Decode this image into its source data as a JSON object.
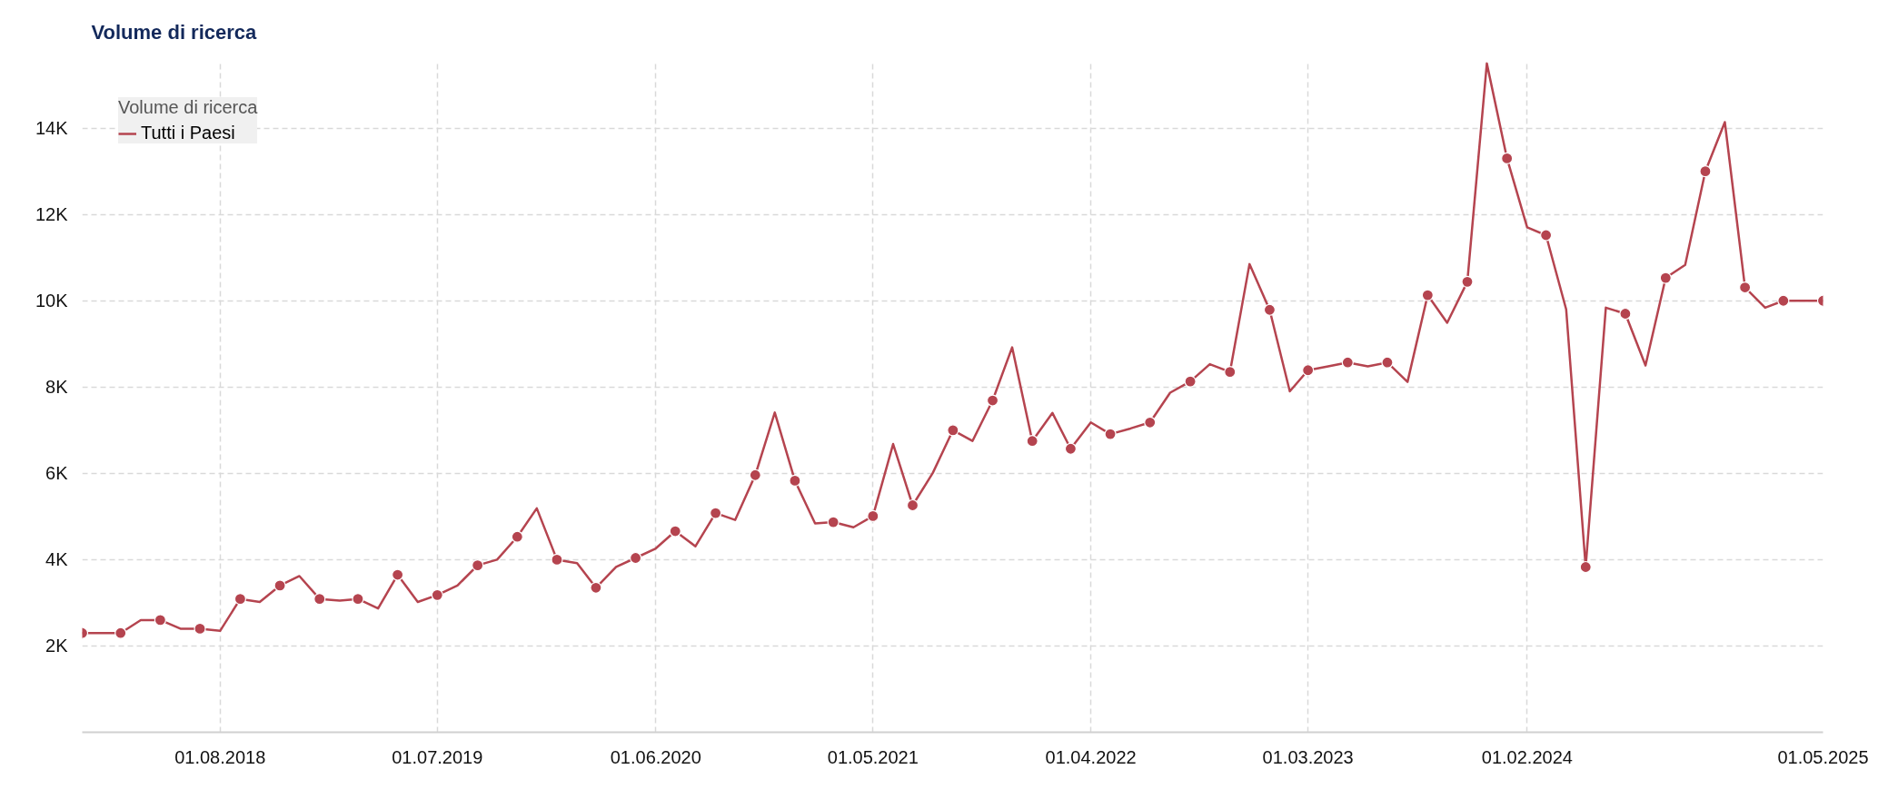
{
  "chart_data": {
    "type": "line",
    "title": "Volume di ricerca",
    "legend_title": "Volume di ricerca",
    "legend": "top left",
    "grid": true,
    "x": [
      "2018-01",
      "2018-02",
      "2018-03",
      "2018-04",
      "2018-05",
      "2018-06",
      "2018-07",
      "2018-08",
      "2018-09",
      "2018-10",
      "2018-11",
      "2018-12",
      "2019-01",
      "2019-02",
      "2019-03",
      "2019-04",
      "2019-05",
      "2019-06",
      "2019-07",
      "2019-08",
      "2019-09",
      "2019-10",
      "2019-11",
      "2019-12",
      "2020-01",
      "2020-02",
      "2020-03",
      "2020-04",
      "2020-05",
      "2020-06",
      "2020-07",
      "2020-08",
      "2020-09",
      "2020-10",
      "2020-11",
      "2020-12",
      "2021-01",
      "2021-02",
      "2021-03",
      "2021-04",
      "2021-05",
      "2021-06",
      "2021-07",
      "2021-08",
      "2021-09",
      "2021-10",
      "2021-11",
      "2021-12",
      "2022-01",
      "2022-02",
      "2022-03",
      "2022-04",
      "2022-05",
      "2022-06",
      "2022-07",
      "2022-08",
      "2022-09",
      "2022-10",
      "2022-11",
      "2022-12",
      "2023-01",
      "2023-02",
      "2023-03",
      "2023-04",
      "2023-05",
      "2023-06",
      "2023-07",
      "2023-08",
      "2023-09",
      "2023-10",
      "2023-11",
      "2023-12",
      "2024-01",
      "2024-02",
      "2024-03",
      "2024-04",
      "2024-05",
      "2024-06",
      "2024-07",
      "2024-08",
      "2024-09",
      "2024-10",
      "2024-11",
      "2024-12",
      "2025-01",
      "2025-02",
      "2025-03",
      "2025-04",
      "2025-05"
    ],
    "series": [
      {
        "name": "Tutti i Paesi",
        "color": "#b5444f",
        "values": [
          2300,
          2300,
          2300,
          2600,
          2600,
          2400,
          2400,
          2350,
          3090,
          3020,
          3400,
          3620,
          3090,
          3050,
          3090,
          2870,
          3650,
          3020,
          3180,
          3400,
          3870,
          4000,
          4530,
          5190,
          4000,
          3920,
          3350,
          3830,
          4040,
          4260,
          4660,
          4310,
          5080,
          4920,
          5960,
          7410,
          5830,
          4840,
          4870,
          4750,
          5010,
          6680,
          5260,
          6010,
          7000,
          6750,
          7690,
          8920,
          6750,
          7400,
          6570,
          7180,
          6910,
          7040,
          7180,
          7870,
          8130,
          8530,
          8350,
          10850,
          9790,
          7900,
          8390,
          8480,
          8570,
          8480,
          8570,
          8120,
          10130,
          9490,
          10440,
          15500,
          13300,
          11700,
          11520,
          9800,
          3830,
          9840,
          9700,
          8500,
          10530,
          10830,
          13000,
          14140,
          10310,
          9840,
          10000,
          10000,
          10000
        ]
      },
      {
        "type": "scatter",
        "color": "#b5444f",
        "marker": "circle",
        "x": [
          "2018-01",
          "2018-03",
          "2018-05",
          "2018-07",
          "2018-09",
          "2018-11",
          "2019-01",
          "2019-03",
          "2019-05",
          "2019-07",
          "2019-09",
          "2019-11",
          "2020-01",
          "2020-03",
          "2020-05",
          "2020-07",
          "2020-09",
          "2020-11",
          "2021-01",
          "2021-03",
          "2021-05",
          "2021-07",
          "2021-09",
          "2021-11",
          "2022-01",
          "2022-03",
          "2022-05",
          "2022-07",
          "2022-09",
          "2022-11",
          "2023-01",
          "2023-03",
          "2023-05",
          "2023-07",
          "2023-09",
          "2023-11",
          "2024-01",
          "2024-03",
          "2024-05",
          "2024-07",
          "2024-09",
          "2024-11",
          "2025-01",
          "2025-03",
          "2025-05"
        ],
        "values": [
          2300,
          2300,
          2600,
          2400,
          3090,
          3400,
          3090,
          3090,
          3650,
          3180,
          3870,
          4530,
          4000,
          3350,
          4040,
          4660,
          5080,
          5960,
          5830,
          4870,
          5010,
          5260,
          7000,
          7690,
          6750,
          6570,
          6910,
          7180,
          8130,
          8350,
          9790,
          8390,
          8570,
          8570,
          10130,
          10440,
          13300,
          11520,
          3830,
          9700,
          10530,
          13000,
          10310,
          10000,
          10000
        ]
      }
    ],
    "xlim": [
      "2018-01",
      "2025-05"
    ],
    "xticks": [
      {
        "value": "2018-08",
        "label": "01.08.2018"
      },
      {
        "value": "2019-07",
        "label": "01.07.2019"
      },
      {
        "value": "2020-06",
        "label": "01.06.2020"
      },
      {
        "value": "2021-05",
        "label": "01.05.2021"
      },
      {
        "value": "2022-04",
        "label": "01.04.2022"
      },
      {
        "value": "2023-03",
        "label": "01.03.2023"
      },
      {
        "value": "2024-02",
        "label": "01.02.2024"
      },
      {
        "value": "2025-05",
        "label": "01.05.2025"
      }
    ],
    "ylim": [
      0,
      15550
    ],
    "yticks": [
      {
        "value": 2000,
        "label": "2K"
      },
      {
        "value": 4000,
        "label": "4K"
      },
      {
        "value": 6000,
        "label": "6K"
      },
      {
        "value": 8000,
        "label": "8K"
      },
      {
        "value": 10000,
        "label": "10K"
      },
      {
        "value": 12000,
        "label": "12K"
      },
      {
        "value": 14000,
        "label": "14K"
      }
    ]
  }
}
